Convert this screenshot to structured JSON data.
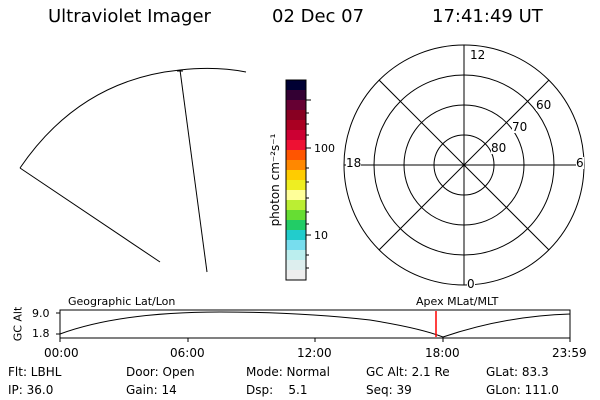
{
  "header": {
    "instrument": "Ultraviolet Imager",
    "date": "02 Dec 07",
    "time": "17:41:49 UT"
  },
  "colorbar": {
    "unit_label": "photon cm⁻²s⁻¹",
    "ticks": [
      "100",
      "10"
    ],
    "colors": [
      "#000033",
      "#330033",
      "#660033",
      "#880022",
      "#aa0022",
      "#cc0033",
      "#ee1133",
      "#ff5500",
      "#ff8800",
      "#ffcc00",
      "#eeee22",
      "#ffff99",
      "#bbee33",
      "#66dd33",
      "#22cc66",
      "#22cccc",
      "#77ddee",
      "#bbeeee",
      "#ddeeee",
      "#eeeeee"
    ]
  },
  "polar_plot": {
    "mlt_labels": {
      "top": "12",
      "bottom": "0",
      "left": "18",
      "right": "6"
    },
    "lat_labels": [
      "60",
      "70",
      "80"
    ]
  },
  "timeline": {
    "y_axis_label": "GC Alt",
    "y_ticks": [
      "9.0",
      "1.8"
    ],
    "left_caption": "Geographic Lat/Lon",
    "right_caption": "Apex MLat/MLT",
    "x_ticks": [
      "00:00",
      "06:00",
      "12:00",
      "18:00",
      "23:59"
    ],
    "marker_color": "#ff0000"
  },
  "footer": {
    "rows": [
      [
        "Flt: LBHL",
        "Door: Open",
        "Mode: Normal",
        "GC Alt: 2.1 Re",
        "GLat: 83.3"
      ],
      [
        "IP: 36.0",
        "Gain: 14",
        "Dsp:    5.1",
        "Seq: 39",
        "GLon: 111.0"
      ]
    ]
  }
}
